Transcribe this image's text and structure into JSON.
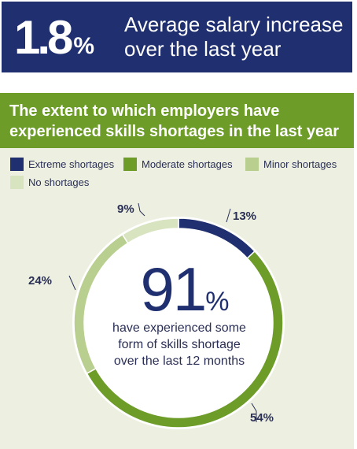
{
  "header": {
    "stat_value": "1.8",
    "stat_unit": "%",
    "stat_text_line1": "Average salary increase",
    "stat_text_line2": "over the last year"
  },
  "panel": {
    "title_line1": "The extent to which employers have",
    "title_line2": "experienced skills shortages in the last year"
  },
  "center": {
    "value": "91",
    "unit": "%",
    "line1": "have experienced some",
    "line2": "form of skills shortage",
    "line3": "over the last 12 months"
  },
  "chart_data": {
    "type": "pie",
    "style": "donut",
    "series": [
      {
        "name": "Extreme shortages",
        "value": 13,
        "label": "13%",
        "color": "#1f2f6f"
      },
      {
        "name": "Moderate shortages",
        "value": 54,
        "label": "54%",
        "color": "#6d9c28"
      },
      {
        "name": "Minor shortages",
        "value": 24,
        "label": "24%",
        "color": "#b8cf8f"
      },
      {
        "name": "No shortages",
        "value": 9,
        "label": "9%",
        "color": "#d8e3bf"
      }
    ],
    "legend_position": "top-left"
  }
}
